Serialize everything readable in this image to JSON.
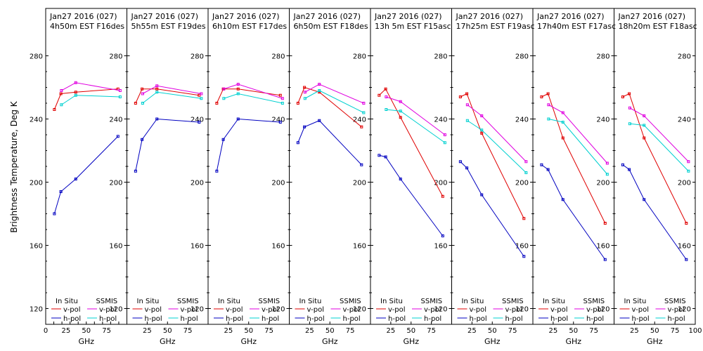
{
  "chart_data": {
    "type": "line",
    "ylabel": "Brightness Temperature, Deg K",
    "ylim": [
      110,
      290
    ],
    "yticks": [
      "120",
      "160",
      "200",
      "240",
      "280"
    ],
    "xlim": [
      0,
      100
    ],
    "xticks": [
      "0",
      "25",
      "50",
      "75",
      "100"
    ],
    "first_panel_xticks": [
      "10",
      "20",
      "30",
      "40",
      "50",
      "60",
      "70",
      "80",
      "90"
    ],
    "other_panel_xticks": [
      "25",
      "50",
      "75"
    ],
    "xlabel": "GHz",
    "legend": {
      "insitu_header": "In Situ",
      "ssmis_header": "SSMIS",
      "vpol": "v-pol",
      "hpol": "h-pol"
    },
    "colors": {
      "insitu_v": "#e00000",
      "insitu_h": "#0000c0",
      "ssmis_v": "#e000e0",
      "ssmis_h": "#00d0d0"
    },
    "panels": [
      {
        "title1": "Jan27 2016 (027)",
        "title2": "4h50m EST F16des",
        "insitu_v": [
          [
            10.7,
            246
          ],
          [
            18.7,
            256
          ],
          [
            37,
            257
          ],
          [
            89,
            259
          ]
        ],
        "insitu_h": [
          [
            10.7,
            180
          ],
          [
            18.7,
            194
          ],
          [
            37,
            202
          ],
          [
            89,
            229
          ]
        ],
        "ssmis_v": [
          [
            19.35,
            258
          ],
          [
            37,
            263
          ],
          [
            91.65,
            258
          ]
        ],
        "ssmis_h": [
          [
            19.35,
            249
          ],
          [
            37,
            255
          ],
          [
            91.65,
            254
          ]
        ]
      },
      {
        "title1": "Jan27 2016 (027)",
        "title2": "5h55m EST F19des",
        "insitu_v": [
          [
            10.7,
            250
          ],
          [
            18.7,
            259
          ],
          [
            37,
            259
          ],
          [
            89,
            255
          ]
        ],
        "insitu_h": [
          [
            10.7,
            207
          ],
          [
            18.7,
            227
          ],
          [
            37,
            240
          ],
          [
            89,
            238
          ]
        ],
        "ssmis_v": [
          [
            19.35,
            256
          ],
          [
            37,
            261
          ],
          [
            91.65,
            256
          ]
        ],
        "ssmis_h": [
          [
            19.35,
            250
          ],
          [
            37,
            257
          ],
          [
            91.65,
            253
          ]
        ]
      },
      {
        "title1": "Jan27 2016 (027)",
        "title2": "6h10m EST F17des",
        "insitu_v": [
          [
            10.7,
            250
          ],
          [
            18.7,
            259
          ],
          [
            37,
            259
          ],
          [
            89,
            255
          ]
        ],
        "insitu_h": [
          [
            10.7,
            207
          ],
          [
            18.7,
            227
          ],
          [
            37,
            240
          ],
          [
            89,
            238
          ]
        ],
        "ssmis_v": [
          [
            19.35,
            259
          ],
          [
            37,
            262
          ],
          [
            91.65,
            253
          ]
        ],
        "ssmis_h": [
          [
            19.35,
            253
          ],
          [
            37,
            256
          ],
          [
            91.65,
            250
          ]
        ]
      },
      {
        "title1": "Jan27 2016 (027)",
        "title2": "6h50m EST F18des",
        "insitu_v": [
          [
            10.7,
            250
          ],
          [
            18.7,
            260
          ],
          [
            37,
            257
          ],
          [
            89,
            235
          ]
        ],
        "insitu_h": [
          [
            10.7,
            225
          ],
          [
            18.7,
            235
          ],
          [
            37,
            239
          ],
          [
            89,
            211
          ]
        ],
        "ssmis_v": [
          [
            19.35,
            257
          ],
          [
            37,
            262
          ],
          [
            91.65,
            250
          ]
        ],
        "ssmis_h": [
          [
            19.35,
            253
          ],
          [
            37,
            258
          ],
          [
            91.65,
            244
          ]
        ]
      },
      {
        "title1": "Jan27 2016 (027)",
        "title2": "13h 5m EST F15asc",
        "insitu_v": [
          [
            10.7,
            255
          ],
          [
            18.7,
            259
          ],
          [
            37,
            241
          ],
          [
            89,
            191
          ]
        ],
        "insitu_h": [
          [
            10.7,
            217
          ],
          [
            18.7,
            216
          ],
          [
            37,
            202
          ],
          [
            89,
            166
          ]
        ],
        "ssmis_v": [
          [
            19.35,
            254
          ],
          [
            37,
            251
          ],
          [
            91.65,
            230
          ]
        ],
        "ssmis_h": [
          [
            19.35,
            246
          ],
          [
            37,
            245
          ],
          [
            91.65,
            225
          ]
        ]
      },
      {
        "title1": "Jan27 2016 (027)",
        "title2": "17h25m EST F19asc",
        "insitu_v": [
          [
            10.7,
            254
          ],
          [
            18.7,
            256
          ],
          [
            37,
            231
          ],
          [
            89,
            177
          ]
        ],
        "insitu_h": [
          [
            10.7,
            213
          ],
          [
            18.7,
            209
          ],
          [
            37,
            192
          ],
          [
            89,
            153
          ]
        ],
        "ssmis_v": [
          [
            19.35,
            249
          ],
          [
            37,
            242
          ],
          [
            91.65,
            213
          ]
        ],
        "ssmis_h": [
          [
            19.35,
            239
          ],
          [
            37,
            233
          ],
          [
            91.65,
            206
          ]
        ]
      },
      {
        "title1": "Jan27 2016 (027)",
        "title2": "17h40m EST F17asc",
        "insitu_v": [
          [
            10.7,
            254
          ],
          [
            18.7,
            256
          ],
          [
            37,
            228
          ],
          [
            89,
            174
          ]
        ],
        "insitu_h": [
          [
            10.7,
            211
          ],
          [
            18.7,
            208
          ],
          [
            37,
            189
          ],
          [
            89,
            151
          ]
        ],
        "ssmis_v": [
          [
            19.35,
            249
          ],
          [
            37,
            244
          ],
          [
            91.65,
            212
          ]
        ],
        "ssmis_h": [
          [
            19.35,
            240
          ],
          [
            37,
            238
          ],
          [
            91.65,
            205
          ]
        ]
      },
      {
        "title1": "Jan27 2016 (027)",
        "title2": "18h20m EST F18asc",
        "insitu_v": [
          [
            10.7,
            254
          ],
          [
            18.7,
            256
          ],
          [
            37,
            228
          ],
          [
            89,
            174
          ]
        ],
        "insitu_h": [
          [
            10.7,
            211
          ],
          [
            18.7,
            208
          ],
          [
            37,
            189
          ],
          [
            89,
            151
          ]
        ],
        "ssmis_v": [
          [
            19.35,
            247
          ],
          [
            37,
            242
          ],
          [
            91.65,
            213
          ]
        ],
        "ssmis_h": [
          [
            19.35,
            237
          ],
          [
            37,
            236
          ],
          [
            91.65,
            207
          ]
        ]
      }
    ]
  }
}
